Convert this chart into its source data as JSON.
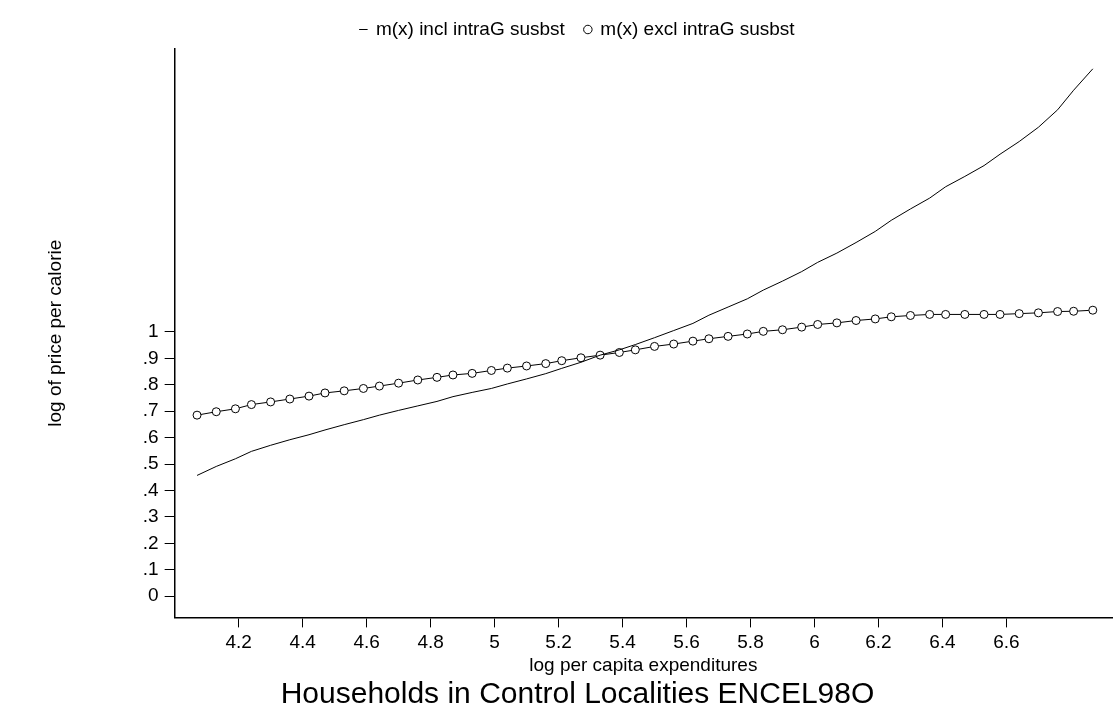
{
  "chart_data": {
    "type": "line",
    "title": "Households in Control Localities ENCEL98O",
    "xlabel": "log per capita expenditures",
    "ylabel": "log of price per calorie",
    "xlim": [
      4.0,
      6.93
    ],
    "xticks": [
      4.2,
      4.4,
      4.6,
      4.8,
      5,
      5.2,
      5.4,
      5.6,
      5.8,
      6,
      6.2,
      6.4,
      6.6
    ],
    "ylim": [
      -0.08,
      2.07
    ],
    "yticks": [
      0,
      {
        "value": 0.1,
        "label": ".1"
      },
      {
        "value": 0.2,
        "label": ".2"
      },
      {
        "value": 0.3,
        "label": ".3"
      },
      {
        "value": 0.4,
        "label": ".4"
      },
      {
        "value": 0.5,
        "label": ".5"
      },
      {
        "value": 0.6,
        "label": ".6"
      },
      {
        "value": 0.7,
        "label": ".7"
      },
      {
        "value": 0.8,
        "label": ".8"
      },
      {
        "value": 0.9,
        "label": ".9"
      },
      1
    ],
    "legend": "top",
    "grid": false,
    "line_style": "solid",
    "series": [
      {
        "name": "m(x) incl intraG susbst",
        "color": "#000000",
        "marker": "none",
        "x": [
          4.07,
          4.13,
          4.19,
          4.24,
          4.3,
          4.36,
          4.42,
          4.47,
          4.53,
          4.59,
          4.64,
          4.7,
          4.76,
          4.82,
          4.87,
          4.93,
          4.99,
          5.04,
          5.1,
          5.16,
          5.21,
          5.27,
          5.33,
          5.39,
          5.44,
          5.5,
          5.56,
          5.62,
          5.67,
          5.73,
          5.79,
          5.84,
          5.9,
          5.96,
          6.01,
          6.07,
          6.13,
          6.19,
          6.24,
          6.3,
          6.36,
          6.41,
          6.47,
          6.53,
          6.58,
          6.64,
          6.7,
          6.76,
          6.81,
          6.87
        ],
        "values": [
          0.457,
          0.491,
          0.52,
          0.548,
          0.571,
          0.592,
          0.611,
          0.629,
          0.649,
          0.668,
          0.685,
          0.703,
          0.72,
          0.737,
          0.755,
          0.771,
          0.786,
          0.803,
          0.822,
          0.842,
          0.862,
          0.885,
          0.912,
          0.932,
          0.952,
          0.978,
          1.005,
          1.032,
          1.063,
          1.094,
          1.125,
          1.158,
          1.192,
          1.228,
          1.263,
          1.298,
          1.338,
          1.38,
          1.422,
          1.465,
          1.506,
          1.549,
          1.588,
          1.629,
          1.672,
          1.72,
          1.774,
          1.84,
          1.914,
          1.995
        ]
      },
      {
        "name": "m(x) excl intraG susbst",
        "color": "#000000",
        "marker": "circle",
        "x": [
          4.07,
          4.13,
          4.19,
          4.24,
          4.3,
          4.36,
          4.42,
          4.47,
          4.53,
          4.59,
          4.64,
          4.7,
          4.76,
          4.82,
          4.87,
          4.93,
          4.99,
          5.04,
          5.1,
          5.16,
          5.21,
          5.27,
          5.33,
          5.39,
          5.44,
          5.5,
          5.56,
          5.62,
          5.67,
          5.73,
          5.79,
          5.84,
          5.9,
          5.96,
          6.01,
          6.07,
          6.13,
          6.19,
          6.24,
          6.3,
          6.36,
          6.41,
          6.47,
          6.53,
          6.58,
          6.64,
          6.7,
          6.76,
          6.81,
          6.87
        ],
        "values": [
          0.685,
          0.698,
          0.709,
          0.725,
          0.735,
          0.746,
          0.757,
          0.769,
          0.777,
          0.786,
          0.795,
          0.806,
          0.818,
          0.828,
          0.837,
          0.843,
          0.854,
          0.863,
          0.871,
          0.88,
          0.891,
          0.902,
          0.912,
          0.922,
          0.932,
          0.945,
          0.954,
          0.965,
          0.974,
          0.983,
          0.992,
          1.002,
          1.008,
          1.018,
          1.028,
          1.034,
          1.043,
          1.049,
          1.057,
          1.062,
          1.066,
          1.066,
          1.066,
          1.066,
          1.066,
          1.069,
          1.072,
          1.077,
          1.078,
          1.082
        ]
      }
    ]
  }
}
